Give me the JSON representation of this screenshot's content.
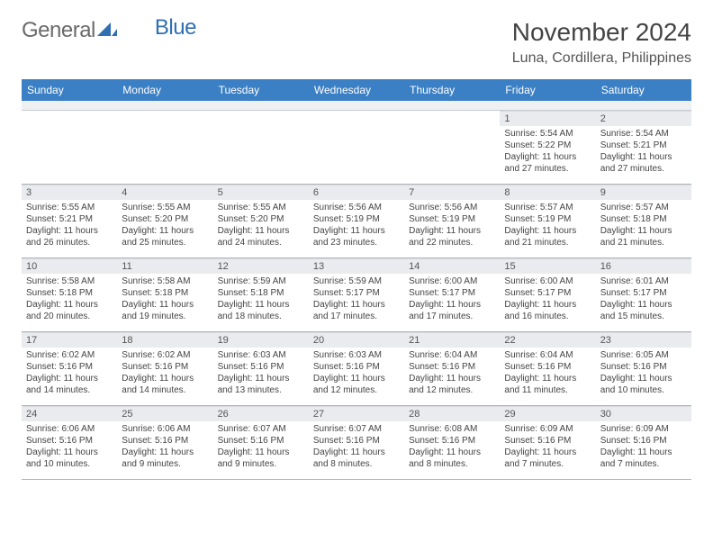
{
  "brand": {
    "part1": "General",
    "part2": "Blue"
  },
  "title": "November 2024",
  "location": "Luna, Cordillera, Philippines",
  "colors": {
    "header_bg": "#3b7fc4",
    "header_text": "#ffffff",
    "daynum_bg": "#e9ebee",
    "border": "#b0b5bb",
    "logo_gray": "#6a6a6a",
    "logo_blue": "#2f6fb2",
    "page_bg": "#ffffff"
  },
  "fonts": {
    "title_size_pt": 21,
    "location_size_pt": 12,
    "dow_size_pt": 9,
    "daynum_size_pt": 8,
    "body_size_pt": 7.5
  },
  "dow": [
    "Sunday",
    "Monday",
    "Tuesday",
    "Wednesday",
    "Thursday",
    "Friday",
    "Saturday"
  ],
  "weeks": [
    [
      null,
      null,
      null,
      null,
      null,
      {
        "n": "1",
        "sr": "Sunrise: 5:54 AM",
        "ss": "Sunset: 5:22 PM",
        "dl": "Daylight: 11 hours and 27 minutes."
      },
      {
        "n": "2",
        "sr": "Sunrise: 5:54 AM",
        "ss": "Sunset: 5:21 PM",
        "dl": "Daylight: 11 hours and 27 minutes."
      }
    ],
    [
      {
        "n": "3",
        "sr": "Sunrise: 5:55 AM",
        "ss": "Sunset: 5:21 PM",
        "dl": "Daylight: 11 hours and 26 minutes."
      },
      {
        "n": "4",
        "sr": "Sunrise: 5:55 AM",
        "ss": "Sunset: 5:20 PM",
        "dl": "Daylight: 11 hours and 25 minutes."
      },
      {
        "n": "5",
        "sr": "Sunrise: 5:55 AM",
        "ss": "Sunset: 5:20 PM",
        "dl": "Daylight: 11 hours and 24 minutes."
      },
      {
        "n": "6",
        "sr": "Sunrise: 5:56 AM",
        "ss": "Sunset: 5:19 PM",
        "dl": "Daylight: 11 hours and 23 minutes."
      },
      {
        "n": "7",
        "sr": "Sunrise: 5:56 AM",
        "ss": "Sunset: 5:19 PM",
        "dl": "Daylight: 11 hours and 22 minutes."
      },
      {
        "n": "8",
        "sr": "Sunrise: 5:57 AM",
        "ss": "Sunset: 5:19 PM",
        "dl": "Daylight: 11 hours and 21 minutes."
      },
      {
        "n": "9",
        "sr": "Sunrise: 5:57 AM",
        "ss": "Sunset: 5:18 PM",
        "dl": "Daylight: 11 hours and 21 minutes."
      }
    ],
    [
      {
        "n": "10",
        "sr": "Sunrise: 5:58 AM",
        "ss": "Sunset: 5:18 PM",
        "dl": "Daylight: 11 hours and 20 minutes."
      },
      {
        "n": "11",
        "sr": "Sunrise: 5:58 AM",
        "ss": "Sunset: 5:18 PM",
        "dl": "Daylight: 11 hours and 19 minutes."
      },
      {
        "n": "12",
        "sr": "Sunrise: 5:59 AM",
        "ss": "Sunset: 5:18 PM",
        "dl": "Daylight: 11 hours and 18 minutes."
      },
      {
        "n": "13",
        "sr": "Sunrise: 5:59 AM",
        "ss": "Sunset: 5:17 PM",
        "dl": "Daylight: 11 hours and 17 minutes."
      },
      {
        "n": "14",
        "sr": "Sunrise: 6:00 AM",
        "ss": "Sunset: 5:17 PM",
        "dl": "Daylight: 11 hours and 17 minutes."
      },
      {
        "n": "15",
        "sr": "Sunrise: 6:00 AM",
        "ss": "Sunset: 5:17 PM",
        "dl": "Daylight: 11 hours and 16 minutes."
      },
      {
        "n": "16",
        "sr": "Sunrise: 6:01 AM",
        "ss": "Sunset: 5:17 PM",
        "dl": "Daylight: 11 hours and 15 minutes."
      }
    ],
    [
      {
        "n": "17",
        "sr": "Sunrise: 6:02 AM",
        "ss": "Sunset: 5:16 PM",
        "dl": "Daylight: 11 hours and 14 minutes."
      },
      {
        "n": "18",
        "sr": "Sunrise: 6:02 AM",
        "ss": "Sunset: 5:16 PM",
        "dl": "Daylight: 11 hours and 14 minutes."
      },
      {
        "n": "19",
        "sr": "Sunrise: 6:03 AM",
        "ss": "Sunset: 5:16 PM",
        "dl": "Daylight: 11 hours and 13 minutes."
      },
      {
        "n": "20",
        "sr": "Sunrise: 6:03 AM",
        "ss": "Sunset: 5:16 PM",
        "dl": "Daylight: 11 hours and 12 minutes."
      },
      {
        "n": "21",
        "sr": "Sunrise: 6:04 AM",
        "ss": "Sunset: 5:16 PM",
        "dl": "Daylight: 11 hours and 12 minutes."
      },
      {
        "n": "22",
        "sr": "Sunrise: 6:04 AM",
        "ss": "Sunset: 5:16 PM",
        "dl": "Daylight: 11 hours and 11 minutes."
      },
      {
        "n": "23",
        "sr": "Sunrise: 6:05 AM",
        "ss": "Sunset: 5:16 PM",
        "dl": "Daylight: 11 hours and 10 minutes."
      }
    ],
    [
      {
        "n": "24",
        "sr": "Sunrise: 6:06 AM",
        "ss": "Sunset: 5:16 PM",
        "dl": "Daylight: 11 hours and 10 minutes."
      },
      {
        "n": "25",
        "sr": "Sunrise: 6:06 AM",
        "ss": "Sunset: 5:16 PM",
        "dl": "Daylight: 11 hours and 9 minutes."
      },
      {
        "n": "26",
        "sr": "Sunrise: 6:07 AM",
        "ss": "Sunset: 5:16 PM",
        "dl": "Daylight: 11 hours and 9 minutes."
      },
      {
        "n": "27",
        "sr": "Sunrise: 6:07 AM",
        "ss": "Sunset: 5:16 PM",
        "dl": "Daylight: 11 hours and 8 minutes."
      },
      {
        "n": "28",
        "sr": "Sunrise: 6:08 AM",
        "ss": "Sunset: 5:16 PM",
        "dl": "Daylight: 11 hours and 8 minutes."
      },
      {
        "n": "29",
        "sr": "Sunrise: 6:09 AM",
        "ss": "Sunset: 5:16 PM",
        "dl": "Daylight: 11 hours and 7 minutes."
      },
      {
        "n": "30",
        "sr": "Sunrise: 6:09 AM",
        "ss": "Sunset: 5:16 PM",
        "dl": "Daylight: 11 hours and 7 minutes."
      }
    ]
  ]
}
